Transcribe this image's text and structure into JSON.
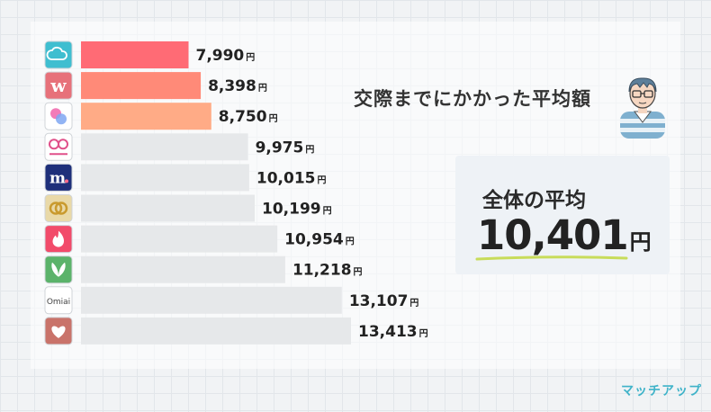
{
  "heading": "交際までにかかった平均額",
  "average": {
    "label": "全体の平均",
    "value": "10,401",
    "unit": "円"
  },
  "brand": "マッチアップ",
  "colors": {
    "bar_top1": "#ff6b75",
    "bar_top2": "#ff8a78",
    "bar_top3": "#ffab86",
    "bar_other": "#e6e8ea",
    "underline": "#c8dc5a"
  },
  "chart_data": {
    "type": "bar",
    "orientation": "horizontal",
    "unit": "円",
    "categories": [
      {
        "icon": "cloud-p-icon",
        "icon_bg": "#3fbed0"
      },
      {
        "icon": "w-letter-icon",
        "icon_bg": "#e7717a"
      },
      {
        "icon": "gradient-drops-icon",
        "icon_bg": "#ffffff"
      },
      {
        "icon": "ribbon-icon",
        "icon_bg": "#ffffff"
      },
      {
        "icon": "m-heart-icon",
        "icon_bg": "#1e2f7a"
      },
      {
        "icon": "gold-rings-icon",
        "icon_bg": "#e9d9a8"
      },
      {
        "icon": "flame-icon",
        "icon_bg": "#f24b6a"
      },
      {
        "icon": "leaves-icon",
        "icon_bg": "#5bb36a"
      },
      {
        "icon": "omiai-text-icon",
        "icon_bg": "#ffffff"
      },
      {
        "icon": "heart-hand-icon",
        "icon_bg": "#c9736a"
      }
    ],
    "values": [
      7990,
      8398,
      8750,
      9975,
      10015,
      10199,
      10954,
      11218,
      13107,
      13413
    ],
    "value_labels": [
      "7,990",
      "8,398",
      "8,750",
      "9,975",
      "10,015",
      "10,199",
      "10,954",
      "11,218",
      "13,107",
      "13,413"
    ],
    "highlighted_top": 3
  }
}
